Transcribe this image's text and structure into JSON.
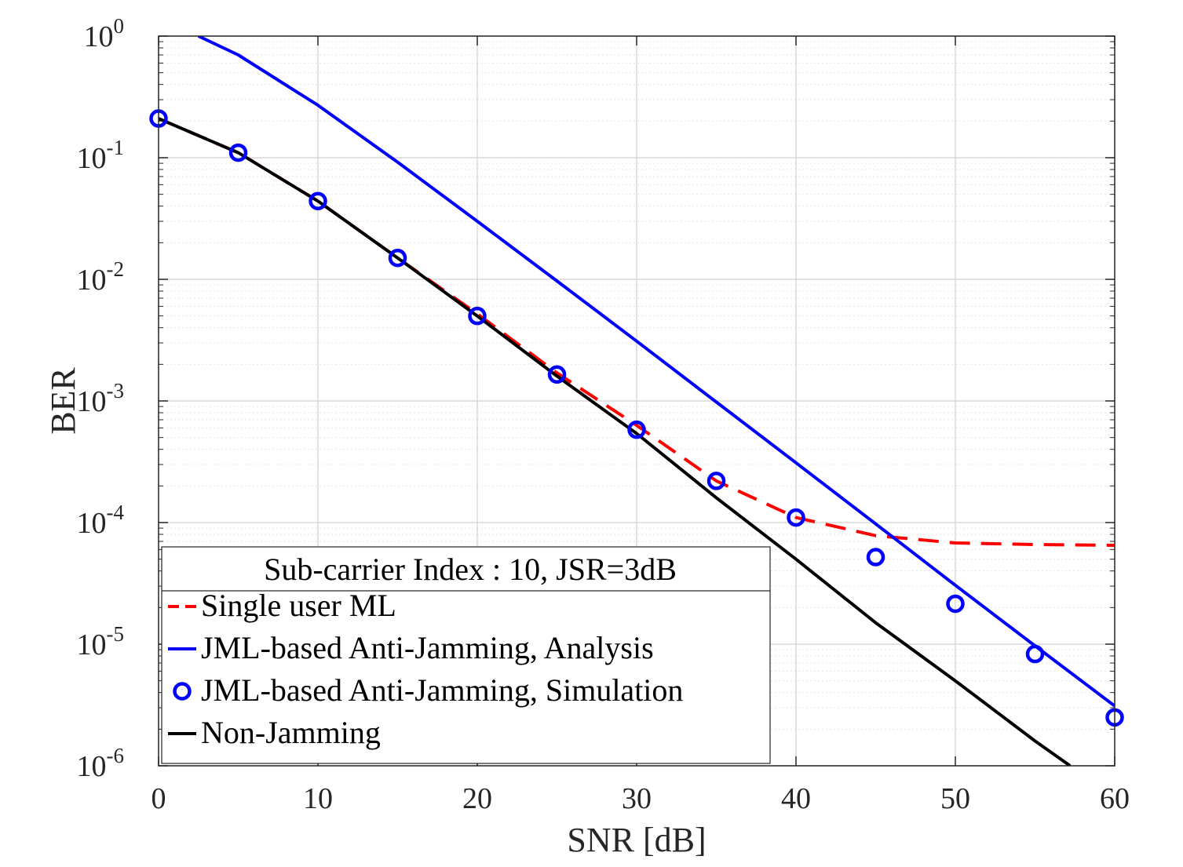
{
  "chart_data": {
    "type": "line",
    "title": "",
    "xlabel": "SNR [dB]",
    "ylabel": "BER",
    "xlim": [
      0,
      60
    ],
    "ylim": [
      1e-06,
      1
    ],
    "yscale": "log",
    "grid": true,
    "minor_grid": true,
    "x_ticks": [
      0,
      10,
      20,
      30,
      40,
      50,
      60
    ],
    "x_tick_labels": [
      "0",
      "10",
      "20",
      "30",
      "40",
      "50",
      "60"
    ],
    "y_ticks": [
      {
        "value": 1,
        "base": "10",
        "exp": "0"
      },
      {
        "value": 0.1,
        "base": "10",
        "exp": "-1"
      },
      {
        "value": 0.01,
        "base": "10",
        "exp": "-2"
      },
      {
        "value": 0.001,
        "base": "10",
        "exp": "-3"
      },
      {
        "value": 0.0001,
        "base": "10",
        "exp": "-4"
      },
      {
        "value": 1e-05,
        "base": "10",
        "exp": "-5"
      },
      {
        "value": 1e-06,
        "base": "10",
        "exp": "-6"
      }
    ],
    "legend": {
      "title": "Sub-carrier Index : 10, JSR=3dB",
      "location": "bottom-left"
    },
    "series": [
      {
        "name": "Single user ML",
        "style": "dashed",
        "marker": "none",
        "color": "#ff0000",
        "points": [
          [
            0,
            0.21
          ],
          [
            5,
            0.11
          ],
          [
            10,
            0.044
          ],
          [
            15,
            0.015
          ],
          [
            20,
            0.0052
          ],
          [
            25,
            0.0017
          ],
          [
            30,
            0.00063
          ],
          [
            35,
            0.00022
          ],
          [
            40,
            0.00011
          ],
          [
            45,
            7.8e-05
          ],
          [
            50,
            6.8e-05
          ],
          [
            55,
            6.6e-05
          ],
          [
            60,
            6.5e-05
          ]
        ]
      },
      {
        "name": "JML-based Anti-Jamming, Analysis",
        "style": "solid",
        "marker": "none",
        "color": "#0000ff",
        "points": [
          [
            2.5,
            1.0
          ],
          [
            5,
            0.7
          ],
          [
            10,
            0.27
          ],
          [
            15,
            0.092
          ],
          [
            20,
            0.03
          ],
          [
            25,
            0.0097
          ],
          [
            30,
            0.0031
          ],
          [
            35,
            0.00098
          ],
          [
            40,
            0.00031
          ],
          [
            45,
            9.75e-05
          ],
          [
            50,
            3.05e-05
          ],
          [
            55,
            9.7e-06
          ],
          [
            60,
            3.1e-06
          ]
        ]
      },
      {
        "name": "JML-based Anti-Jamming, Simulation",
        "style": "none",
        "marker": "circle",
        "color": "#0000ff",
        "points": [
          [
            0,
            0.21
          ],
          [
            5,
            0.11
          ],
          [
            10,
            0.044
          ],
          [
            15,
            0.015
          ],
          [
            20,
            0.005
          ],
          [
            25,
            0.00165
          ],
          [
            30,
            0.00058
          ],
          [
            35,
            0.00022
          ],
          [
            40,
            0.00011
          ],
          [
            45,
            5.2e-05
          ],
          [
            50,
            2.15e-05
          ],
          [
            55,
            8.3e-06
          ],
          [
            60,
            2.5e-06
          ]
        ]
      },
      {
        "name": "Non-Jamming",
        "style": "solid",
        "marker": "none",
        "color": "#000000",
        "points": [
          [
            0,
            0.21
          ],
          [
            5,
            0.11
          ],
          [
            10,
            0.044
          ],
          [
            15,
            0.015
          ],
          [
            20,
            0.005
          ],
          [
            25,
            0.0016
          ],
          [
            30,
            0.00054
          ],
          [
            35,
            0.00016
          ],
          [
            40,
            5e-05
          ],
          [
            45,
            1.5e-05
          ],
          [
            50,
            5e-06
          ],
          [
            55,
            1.6e-06
          ],
          [
            57.2,
            1e-06
          ]
        ]
      }
    ]
  }
}
